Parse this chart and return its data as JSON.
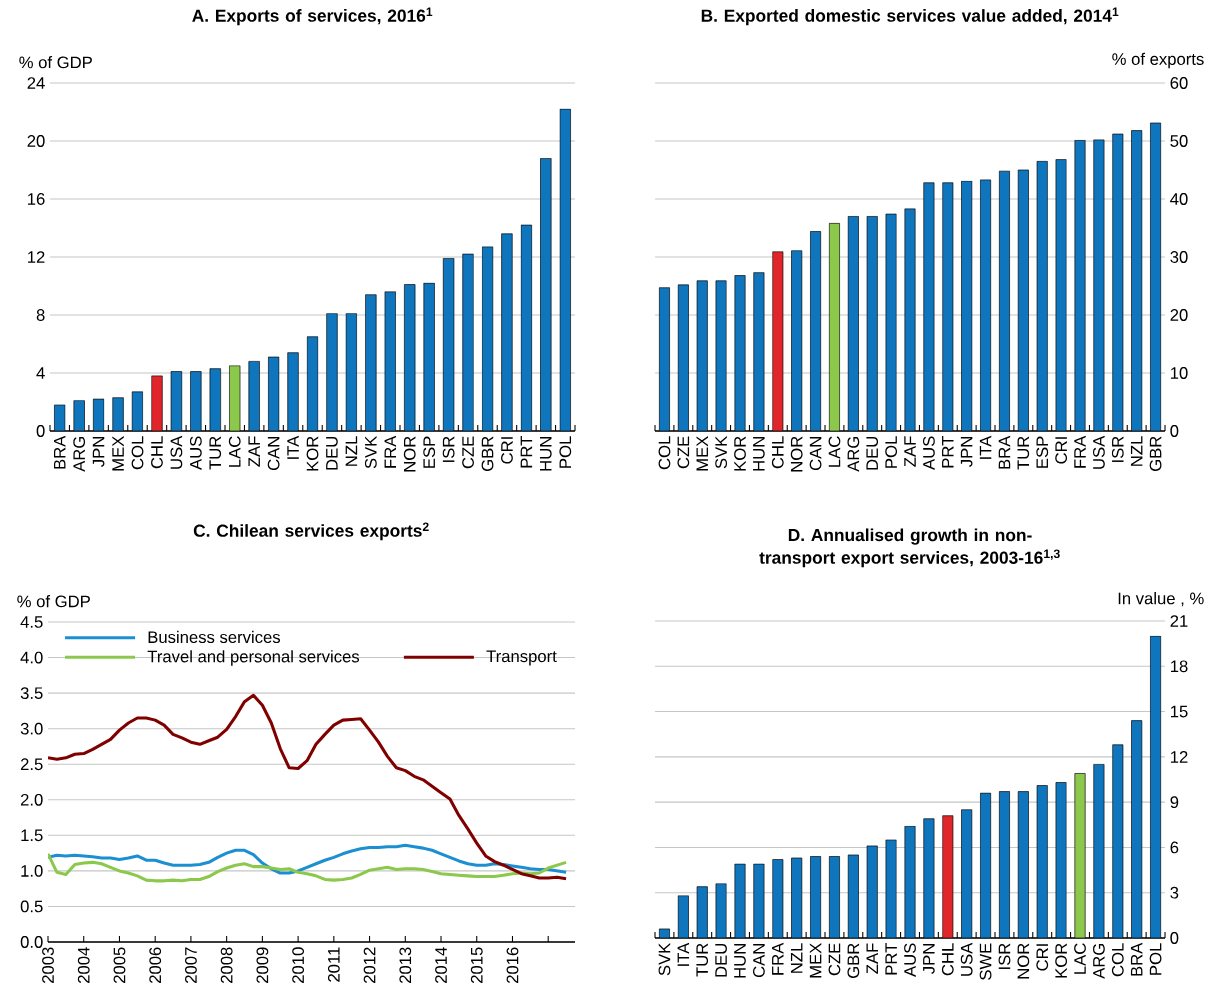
{
  "chart_data": [
    {
      "type": "bar",
      "title": "A. Exports of services, 2016$^{1}$",
      "ylabel": "% of GDP",
      "grid": "y",
      "categories": [
        "BRA",
        "ARG",
        "JPN",
        "MEX",
        "COL",
        "CHL",
        "USA",
        "AUS",
        "TUR",
        "LAC",
        "ZAF",
        "CAN",
        "ITA",
        "KOR",
        "DEU",
        "NZL",
        "SVK",
        "FRA",
        "NOR",
        "ESP",
        "ISR",
        "CZE",
        "GBR",
        "CRI",
        "PRT",
        "HUN",
        "POL"
      ],
      "values": [
        1.8,
        2.1,
        2.2,
        2.3,
        2.7,
        3.8,
        4.1,
        4.1,
        4.3,
        4.5,
        4.8,
        5.1,
        5.4,
        6.5,
        8.1,
        8.1,
        9.4,
        9.6,
        10.1,
        10.2,
        11.9,
        12.2,
        12.7,
        13.6,
        14.2,
        18.8,
        22.2
      ],
      "colors": [
        "#0f75bc",
        "#0f75bc",
        "#0f75bc",
        "#0f75bc",
        "#0f75bc",
        "#e0262b",
        "#0f75bc",
        "#0f75bc",
        "#0f75bc",
        "#8cc84b",
        "#0f75bc",
        "#0f75bc",
        "#0f75bc",
        "#0f75bc",
        "#0f75bc",
        "#0f75bc",
        "#0f75bc",
        "#0f75bc",
        "#0f75bc",
        "#0f75bc",
        "#0f75bc",
        "#0f75bc",
        "#0f75bc",
        "#0f75bc",
        "#0f75bc",
        "#0f75bc",
        "#0f75bc"
      ],
      "ylim": [
        0,
        24
      ],
      "yticks": [
        0,
        4,
        8,
        12,
        16,
        20,
        24
      ]
    },
    {
      "type": "bar",
      "title": "B. Exported domestic services value added, 2014$^{1}$",
      "ylabel": "% of exports",
      "grid": "y",
      "categories": [
        "COL",
        "CZE",
        "MEX",
        "SVK",
        "KOR",
        "HUN",
        "CHL",
        "NOR",
        "CAN",
        "LAC",
        "ARG",
        "DEU",
        "POL",
        "ZAF",
        "AUS",
        "PRT",
        "JPN",
        "ITA",
        "BRA",
        "TUR",
        "ESP",
        "CRI",
        "FRA",
        "USA",
        "ISR",
        "NZL",
        "GBR"
      ],
      "values": [
        24.7,
        25.2,
        25.9,
        25.9,
        26.8,
        27.3,
        30.9,
        31.1,
        34.4,
        35.8,
        37.0,
        37.0,
        37.4,
        38.3,
        42.8,
        42.8,
        43.1,
        43.3,
        44.8,
        45.0,
        46.5,
        46.8,
        50.1,
        50.2,
        51.2,
        51.8,
        53.1
      ],
      "colors": [
        "#0f75bc",
        "#0f75bc",
        "#0f75bc",
        "#0f75bc",
        "#0f75bc",
        "#0f75bc",
        "#e0262b",
        "#0f75bc",
        "#0f75bc",
        "#8cc84b",
        "#0f75bc",
        "#0f75bc",
        "#0f75bc",
        "#0f75bc",
        "#0f75bc",
        "#0f75bc",
        "#0f75bc",
        "#0f75bc",
        "#0f75bc",
        "#0f75bc",
        "#0f75bc",
        "#0f75bc",
        "#0f75bc",
        "#0f75bc",
        "#0f75bc",
        "#0f75bc",
        "#0f75bc"
      ],
      "ylim": [
        0,
        60
      ],
      "yticks": [
        0,
        10,
        20,
        30,
        40,
        50,
        60
      ]
    },
    {
      "type": "line",
      "title": "C. Chilean services exports$^{2}$",
      "ylabel": "% of GDP",
      "grid": "y",
      "legend": "top",
      "marker": "none",
      "line_style": "solid",
      "x": [
        2003,
        2003.25,
        2003.5,
        2003.75,
        2004,
        2004.25,
        2004.5,
        2004.75,
        2005,
        2005.25,
        2005.5,
        2005.75,
        2006,
        2006.25,
        2006.5,
        2006.75,
        2007,
        2007.25,
        2007.5,
        2007.75,
        2008,
        2008.25,
        2008.5,
        2008.75,
        2009,
        2009.25,
        2009.5,
        2009.75,
        2010,
        2010.25,
        2010.5,
        2010.75,
        2011,
        2011.25,
        2011.5,
        2011.75,
        2012,
        2012.25,
        2012.5,
        2012.75,
        2013,
        2013.25,
        2013.5,
        2013.75,
        2014,
        2014.25,
        2014.5,
        2014.75,
        2015,
        2015.25,
        2015.5,
        2015.75,
        2016,
        2016.25,
        2016.5,
        2016.75,
        2017,
        2017.25,
        2017.5
      ],
      "series": [
        {
          "name": "Business services",
          "color": "#1b8fd1",
          "values": [
            1.19,
            1.22,
            1.21,
            1.22,
            1.21,
            1.2,
            1.18,
            1.18,
            1.16,
            1.18,
            1.21,
            1.15,
            1.15,
            1.11,
            1.08,
            1.08,
            1.08,
            1.09,
            1.12,
            1.19,
            1.25,
            1.29,
            1.29,
            1.23,
            1.11,
            1.03,
            0.97,
            0.97,
            1.0,
            1.05,
            1.1,
            1.15,
            1.19,
            1.24,
            1.28,
            1.31,
            1.33,
            1.33,
            1.34,
            1.34,
            1.36,
            1.34,
            1.32,
            1.29,
            1.24,
            1.19,
            1.14,
            1.1,
            1.08,
            1.08,
            1.1,
            1.09,
            1.07,
            1.05,
            1.03,
            1.02,
            1.02,
            1.0,
            0.98
          ]
        },
        {
          "name": "Travel and personal services",
          "color": "#8cc84b",
          "values": [
            1.24,
            0.98,
            0.95,
            1.09,
            1.11,
            1.12,
            1.1,
            1.05,
            1.0,
            0.97,
            0.93,
            0.87,
            0.86,
            0.86,
            0.87,
            0.86,
            0.88,
            0.88,
            0.92,
            0.99,
            1.04,
            1.08,
            1.1,
            1.06,
            1.06,
            1.04,
            1.02,
            1.03,
            0.98,
            0.96,
            0.93,
            0.88,
            0.87,
            0.88,
            0.9,
            0.95,
            1.01,
            1.03,
            1.05,
            1.02,
            1.03,
            1.03,
            1.02,
            0.99,
            0.96,
            0.95,
            0.94,
            0.93,
            0.92,
            0.92,
            0.92,
            0.94,
            0.96,
            0.97,
            0.96,
            0.97,
            1.04,
            1.08,
            1.12
          ]
        },
        {
          "name": "Transport",
          "color": "#800000",
          "values": [
            2.59,
            2.57,
            2.59,
            2.64,
            2.65,
            2.71,
            2.78,
            2.85,
            2.98,
            3.08,
            3.15,
            3.15,
            3.12,
            3.05,
            2.92,
            2.87,
            2.81,
            2.78,
            2.83,
            2.88,
            2.99,
            3.17,
            3.38,
            3.47,
            3.33,
            3.08,
            2.72,
            2.45,
            2.44,
            2.55,
            2.78,
            2.92,
            3.05,
            3.12,
            3.13,
            3.14,
            2.98,
            2.81,
            2.61,
            2.45,
            2.41,
            2.33,
            2.28,
            2.19,
            2.1,
            2.01,
            1.78,
            1.59,
            1.39,
            1.21,
            1.13,
            1.08,
            1.02,
            0.96,
            0.93,
            0.9,
            0.9,
            0.91,
            0.89
          ]
        }
      ],
      "xlim": [
        2003,
        2017.75
      ],
      "xticks": [
        2003,
        2004,
        2005,
        2006,
        2007,
        2008,
        2009,
        2010,
        2011,
        2012,
        2013,
        2014,
        2015,
        2016,
        {
          "value": 2017,
          "label": null
        }
      ],
      "ylim": [
        0,
        4.5
      ],
      "yticks": [
        {
          "value": 0,
          "label": "0.0"
        },
        0.5,
        {
          "value": 1,
          "label": "1.0"
        },
        1.5,
        {
          "value": 2,
          "label": "2.0"
        },
        2.5,
        {
          "value": 3,
          "label": "3.0"
        },
        3.5,
        {
          "value": 4,
          "label": "4.0"
        },
        4.5
      ]
    },
    {
      "type": "bar",
      "title": "D. Annualised growth in non-transport export services, 2003-16$^{1,3}$",
      "ylabel": "In value , %",
      "grid": "y",
      "categories": [
        "SVK",
        "ITA",
        "TUR",
        "DEU",
        "HUN",
        "CAN",
        "FRA",
        "NZL",
        "MEX",
        "CZE",
        "GBR",
        "ZAF",
        "PRT",
        "AUS",
        "JPN",
        "CHL",
        "USA",
        "SWE",
        "ISR",
        "NOR",
        "CRI",
        "KOR",
        "LAC",
        "ARG",
        "COL",
        "BRA",
        "POL"
      ],
      "values": [
        0.6,
        2.8,
        3.4,
        3.6,
        4.9,
        4.9,
        5.2,
        5.3,
        5.4,
        5.4,
        5.5,
        6.1,
        6.5,
        7.4,
        7.9,
        8.1,
        8.5,
        9.6,
        9.7,
        9.7,
        10.1,
        10.3,
        10.9,
        11.5,
        12.8,
        14.4,
        20.0
      ],
      "colors": [
        "#0f75bc",
        "#0f75bc",
        "#0f75bc",
        "#0f75bc",
        "#0f75bc",
        "#0f75bc",
        "#0f75bc",
        "#0f75bc",
        "#0f75bc",
        "#0f75bc",
        "#0f75bc",
        "#0f75bc",
        "#0f75bc",
        "#0f75bc",
        "#0f75bc",
        "#e0262b",
        "#0f75bc",
        "#0f75bc",
        "#0f75bc",
        "#0f75bc",
        "#0f75bc",
        "#0f75bc",
        "#8cc84b",
        "#0f75bc",
        "#0f75bc",
        "#0f75bc",
        "#0f75bc"
      ],
      "ylim": [
        0,
        21
      ],
      "yticks": [
        0,
        3,
        6,
        9,
        12,
        15,
        18,
        21
      ]
    }
  ]
}
